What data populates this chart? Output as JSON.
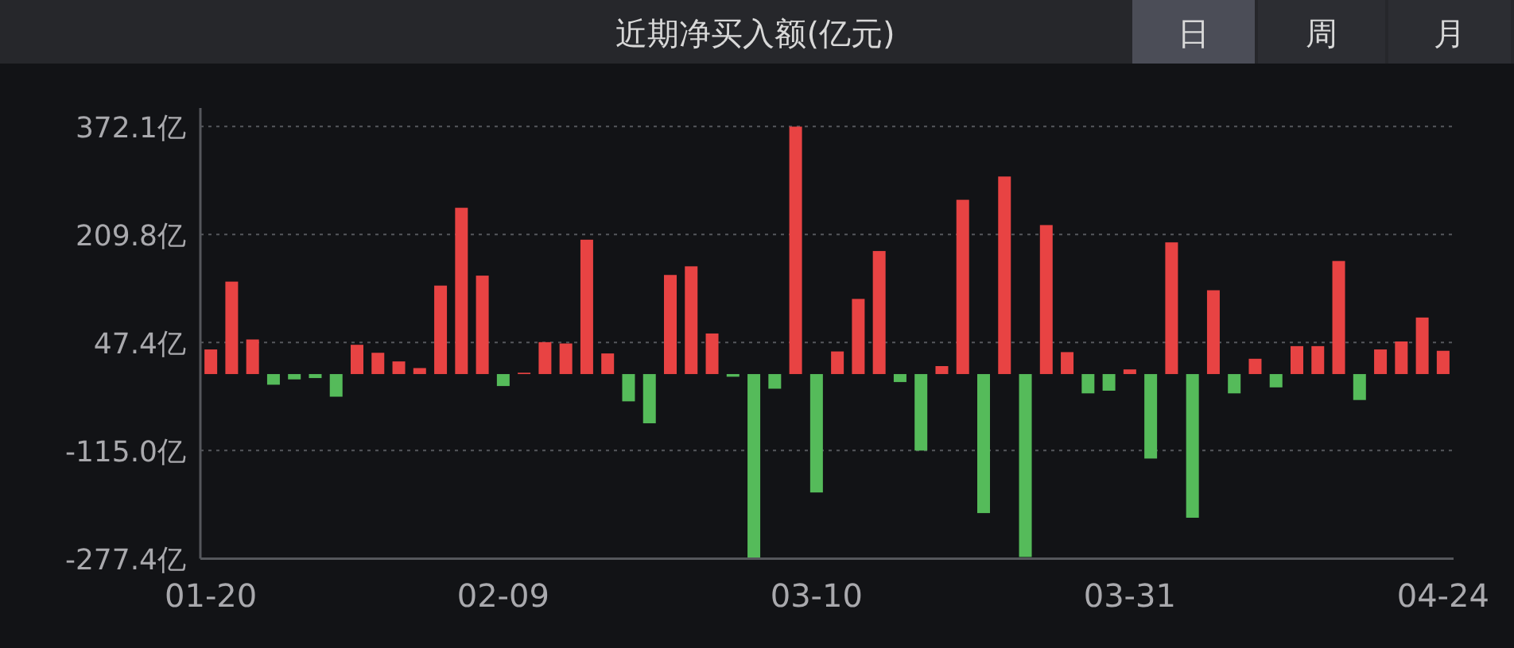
{
  "chart_data": {
    "type": "bar",
    "title": "近期净买入额(亿元)",
    "annotations": [
      "日",
      "周",
      "月"
    ],
    "categories": [
      "01-20",
      null,
      null,
      null,
      null,
      null,
      null,
      null,
      null,
      null,
      null,
      null,
      null,
      null,
      "02-09",
      null,
      null,
      null,
      null,
      null,
      null,
      null,
      null,
      null,
      null,
      null,
      null,
      null,
      null,
      "03-10",
      null,
      null,
      null,
      null,
      null,
      null,
      null,
      null,
      null,
      null,
      null,
      null,
      null,
      null,
      "03-31",
      null,
      null,
      null,
      null,
      null,
      null,
      null,
      null,
      null,
      null,
      null,
      null,
      null,
      null,
      "04-24"
    ],
    "values": [
      37,
      139,
      52,
      -16,
      -8,
      -6,
      -34,
      44,
      32,
      19,
      9,
      133,
      250,
      148,
      -18,
      2,
      48,
      46,
      202,
      31,
      -41,
      -74,
      149,
      162,
      61,
      -4,
      -277,
      -22,
      372,
      -178,
      34,
      113,
      185,
      -12,
      -115,
      12,
      262,
      -209,
      297,
      -275,
      224,
      33,
      -29,
      -25,
      7,
      -127,
      198,
      -216,
      126,
      -29,
      23,
      -20,
      42,
      42,
      170,
      -39,
      37,
      49,
      85,
      35
    ],
    "colors": [
      "#e84343",
      "#e84343",
      "#e84343",
      "#55bb5a",
      "#55bb5a",
      "#55bb5a",
      "#55bb5a",
      "#e84343",
      "#e84343",
      "#e84343",
      "#e84343",
      "#e84343",
      "#e84343",
      "#e84343",
      "#55bb5a",
      "#e84343",
      "#e84343",
      "#e84343",
      "#e84343",
      "#e84343",
      "#55bb5a",
      "#55bb5a",
      "#e84343",
      "#e84343",
      "#e84343",
      "#55bb5a",
      "#55bb5a",
      "#55bb5a",
      "#e84343",
      "#55bb5a",
      "#e84343",
      "#e84343",
      "#e84343",
      "#55bb5a",
      "#55bb5a",
      "#e84343",
      "#e84343",
      "#55bb5a",
      "#e84343",
      "#55bb5a",
      "#e84343",
      "#e84343",
      "#55bb5a",
      "#55bb5a",
      "#e84343",
      "#55bb5a",
      "#e84343",
      "#55bb5a",
      "#e84343",
      "#55bb5a",
      "#e84343",
      "#55bb5a",
      "#e84343",
      "#e84343",
      "#e84343",
      "#55bb5a",
      "#e84343",
      "#e84343",
      "#e84343",
      "#e84343"
    ],
    "ylim": [
      -277.4,
      400
    ],
    "yticks": [
      {
        "value": 372.1,
        "label": "372.1亿"
      },
      {
        "value": 209.8,
        "label": "209.8亿"
      },
      {
        "value": 47.4,
        "label": "47.4亿"
      },
      {
        "value": -115.0,
        "label": "-115.0亿"
      },
      {
        "value": -277.4,
        "label": "-277.4亿"
      }
    ],
    "grid": "y"
  }
}
